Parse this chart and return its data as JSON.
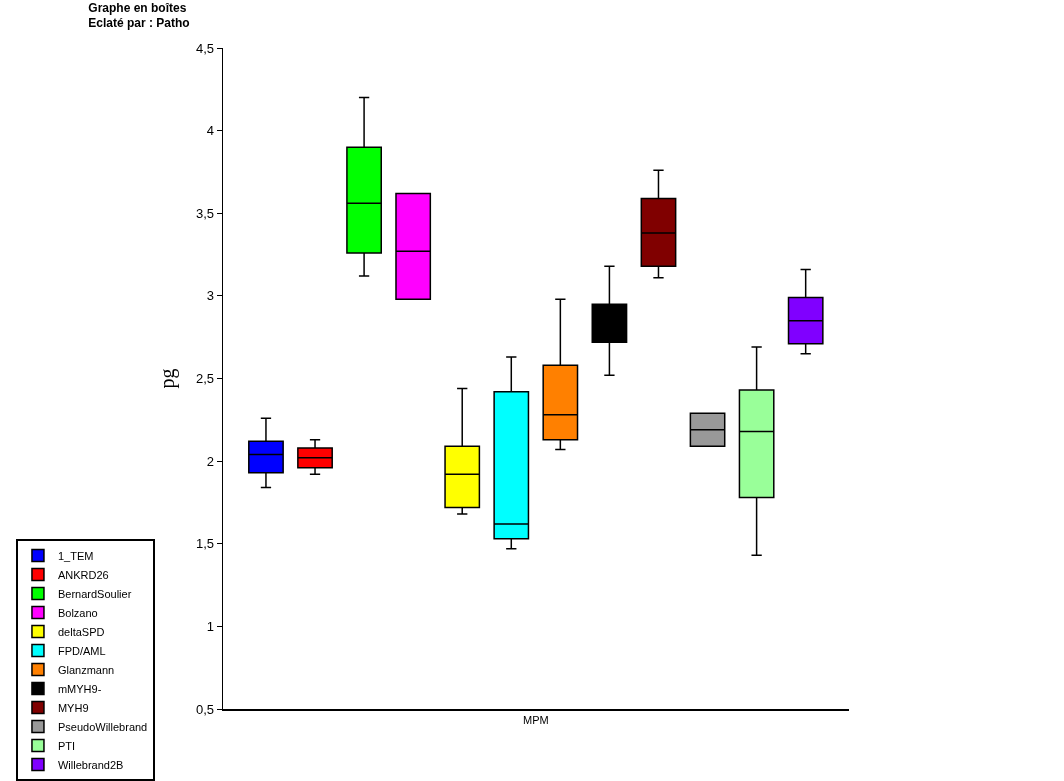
{
  "chart_data": {
    "type": "box",
    "title": "Graphe en boîtes",
    "subtitle": "Eclaté par : Patho",
    "xlabel": null,
    "ylabel": "pg",
    "categories": [
      "MPM"
    ],
    "ylim": [
      0.5,
      4.5
    ],
    "yticks": [
      {
        "value": 0.5,
        "label": "0,5"
      },
      1,
      {
        "value": 1.5,
        "label": "1,5"
      },
      2,
      {
        "value": 2.5,
        "label": "2,5"
      },
      3,
      {
        "value": 3.5,
        "label": "3,5"
      },
      4,
      {
        "value": 4.5,
        "label": "4,5"
      }
    ],
    "legend": "bottom",
    "series": [
      {
        "name": "1_TEM",
        "color": "#0000ff",
        "boxes": [
          {
            "low": 1.84,
            "q1": 1.93,
            "median": 2.04,
            "q3": 2.12,
            "high": 2.26
          }
        ]
      },
      {
        "name": "ANKRD26",
        "color": "#ff0000",
        "boxes": [
          {
            "low": 1.92,
            "q1": 1.96,
            "median": 2.02,
            "q3": 2.08,
            "high": 2.13
          }
        ]
      },
      {
        "name": "BernardSoulier",
        "color": "#00ff00",
        "boxes": [
          {
            "low": 3.12,
            "q1": 3.26,
            "median": 3.56,
            "q3": 3.9,
            "high": 4.2
          }
        ]
      },
      {
        "name": "Bolzano",
        "color": "#ff00ff",
        "boxes": [
          {
            "low": 2.98,
            "q1": 2.98,
            "median": 3.27,
            "q3": 3.62,
            "high": 3.62
          }
        ]
      },
      {
        "name": "deltaSPD",
        "color": "#ffff00",
        "boxes": [
          {
            "low": 1.68,
            "q1": 1.72,
            "median": 1.92,
            "q3": 2.09,
            "high": 2.44
          }
        ]
      },
      {
        "name": "FPD/AML",
        "color": "#00ffff",
        "boxes": [
          {
            "low": 1.47,
            "q1": 1.53,
            "median": 1.62,
            "q3": 2.42,
            "high": 2.63
          }
        ]
      },
      {
        "name": "Glanzmann",
        "color": "#ff8000",
        "boxes": [
          {
            "low": 2.07,
            "q1": 2.13,
            "median": 2.28,
            "q3": 2.58,
            "high": 2.98
          }
        ]
      },
      {
        "name": "mMYH9-",
        "color": "#000000",
        "boxes": [
          {
            "low": 2.52,
            "q1": 2.72,
            "median": 2.85,
            "q3": 2.95,
            "high": 3.18
          }
        ]
      },
      {
        "name": "MYH9",
        "color": "#800000",
        "boxes": [
          {
            "low": 3.11,
            "q1": 3.18,
            "median": 3.38,
            "q3": 3.59,
            "high": 3.76
          }
        ]
      },
      {
        "name": "PseudoWillebrand",
        "color": "#999999",
        "boxes": [
          {
            "low": 2.09,
            "q1": 2.09,
            "median": 2.19,
            "q3": 2.29,
            "high": 2.29
          }
        ]
      },
      {
        "name": "PTI",
        "color": "#99ff99",
        "boxes": [
          {
            "low": 1.43,
            "q1": 1.78,
            "median": 2.18,
            "q3": 2.43,
            "high": 2.69
          }
        ]
      },
      {
        "name": "Willebrand2B",
        "color": "#8000ff",
        "boxes": [
          {
            "low": 2.65,
            "q1": 2.71,
            "median": 2.85,
            "q3": 2.99,
            "high": 3.16
          }
        ]
      }
    ]
  }
}
